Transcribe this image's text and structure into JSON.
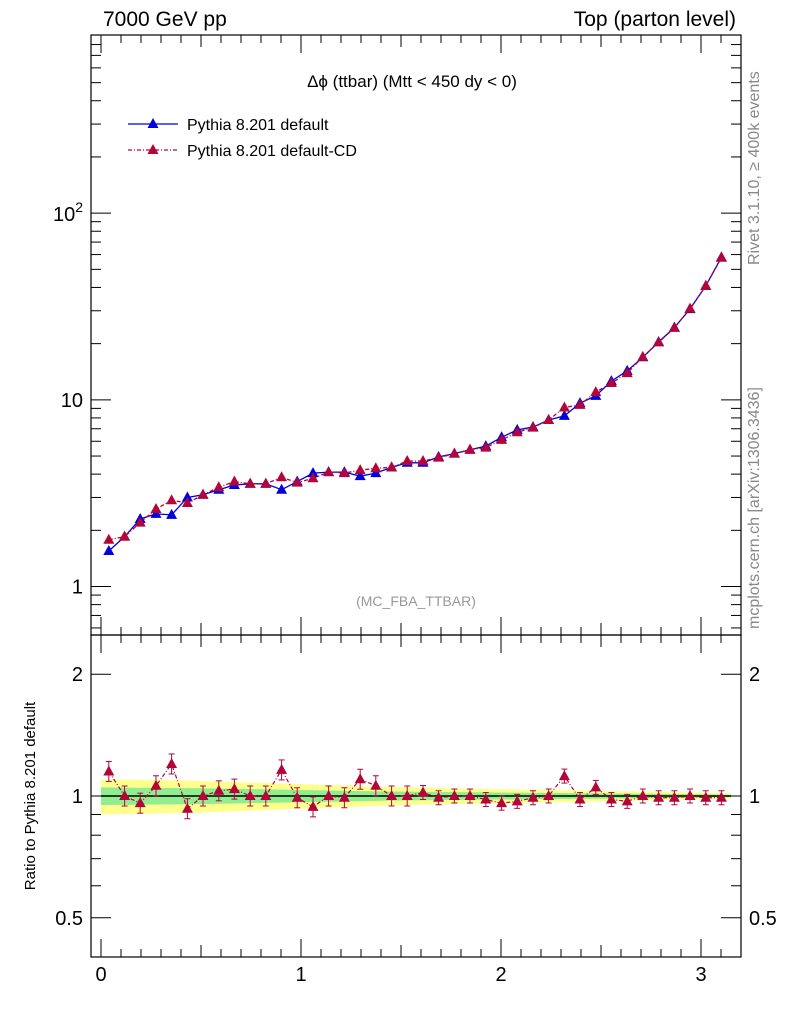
{
  "header": {
    "left": "7000 GeV pp",
    "right": "Top (parton level)"
  },
  "side_labels": {
    "rivet": "Rivet 3.1.10, ≥ 400k events",
    "mcplots": "mcplots.cern.ch [arXiv:1306.3436]"
  },
  "colors": {
    "series1": "#0000dd",
    "series2": "#b3053a",
    "band_yellow": "#ffff8e",
    "band_green": "#90ee90"
  },
  "chart_data": [
    {
      "type": "line",
      "title": "Δϕ (ttbar) (Mtt < 450 dy < 0)",
      "watermark": "(MC_FBA_TTBAR)",
      "yscale": "log",
      "xlim": [
        -0.05,
        3.2
      ],
      "ylim": [
        0.55,
        900
      ],
      "ytick_labels": [
        "1",
        "10",
        "10^2"
      ],
      "legend_position": "top-left",
      "x": [
        0.039,
        0.118,
        0.196,
        0.275,
        0.353,
        0.432,
        0.51,
        0.589,
        0.667,
        0.746,
        0.824,
        0.903,
        0.981,
        1.06,
        1.138,
        1.217,
        1.296,
        1.374,
        1.453,
        1.531,
        1.61,
        1.688,
        1.767,
        1.845,
        1.924,
        2.003,
        2.081,
        2.16,
        2.238,
        2.317,
        2.395,
        2.474,
        2.552,
        2.631,
        2.709,
        2.788,
        2.867,
        2.945,
        3.024,
        3.102
      ],
      "series": [
        {
          "name": "Pythia 8.201 default",
          "values": [
            1.55,
            1.85,
            2.3,
            2.45,
            2.42,
            3.0,
            3.1,
            3.3,
            3.5,
            3.55,
            3.55,
            3.3,
            3.65,
            4.05,
            4.1,
            4.1,
            3.9,
            4.05,
            4.35,
            4.6,
            4.6,
            4.95,
            5.15,
            5.4,
            5.65,
            6.3,
            6.9,
            7.15,
            7.8,
            8.2,
            9.6,
            10.5,
            12.6,
            14.3,
            16.9,
            20.4,
            24.4,
            30.6,
            40.8,
            58.0
          ]
        },
        {
          "name": "Pythia 8.201 default-CD",
          "values": [
            1.78,
            1.85,
            2.2,
            2.6,
            2.9,
            2.8,
            3.1,
            3.4,
            3.65,
            3.55,
            3.55,
            3.85,
            3.6,
            3.8,
            4.1,
            4.05,
            4.2,
            4.3,
            4.35,
            4.7,
            4.7,
            4.9,
            5.15,
            5.4,
            5.55,
            6.1,
            6.7,
            7.1,
            7.8,
            9.1,
            9.4,
            11.0,
            12.3,
            13.9,
            17.0,
            20.3,
            24.3,
            30.8,
            40.8,
            57.7
          ]
        }
      ]
    },
    {
      "type": "line",
      "ylabel": "Ratio to Pythia 8.201 default",
      "yscale": "log",
      "xlim": [
        -0.05,
        3.2
      ],
      "ylim": [
        0.4,
        2.5
      ],
      "ytick_labels": [
        "0.5",
        "1",
        "2"
      ],
      "xtick_labels": [
        "0",
        "1",
        "2",
        "3"
      ],
      "reference_band": {
        "x": [
          0.0,
          0.5,
          1.0,
          1.5,
          2.0,
          2.5,
          3.0,
          3.15
        ],
        "yellow_low": [
          0.9,
          0.91,
          0.93,
          0.95,
          0.96,
          0.97,
          0.98,
          0.985
        ],
        "yellow_high": [
          1.1,
          1.09,
          1.07,
          1.05,
          1.04,
          1.03,
          1.02,
          1.015
        ],
        "green_low": [
          0.95,
          0.955,
          0.965,
          0.975,
          0.98,
          0.985,
          0.99,
          0.993
        ],
        "green_high": [
          1.05,
          1.045,
          1.035,
          1.025,
          1.02,
          1.015,
          1.01,
          1.007
        ]
      },
      "series": [
        {
          "name": "Pythia 8.201 default-CD",
          "values": [
            1.15,
            1.0,
            0.96,
            1.06,
            1.2,
            0.93,
            1.0,
            1.03,
            1.04,
            1.0,
            1.0,
            1.16,
            0.99,
            0.94,
            1.0,
            0.99,
            1.1,
            1.06,
            1.0,
            1.0,
            1.02,
            0.99,
            1.0,
            1.0,
            0.98,
            0.96,
            0.97,
            0.99,
            1.0,
            1.12,
            0.98,
            1.05,
            0.98,
            0.97,
            1.0,
            0.99,
            0.99,
            1.0,
            0.99,
            0.99
          ]
        }
      ]
    }
  ]
}
